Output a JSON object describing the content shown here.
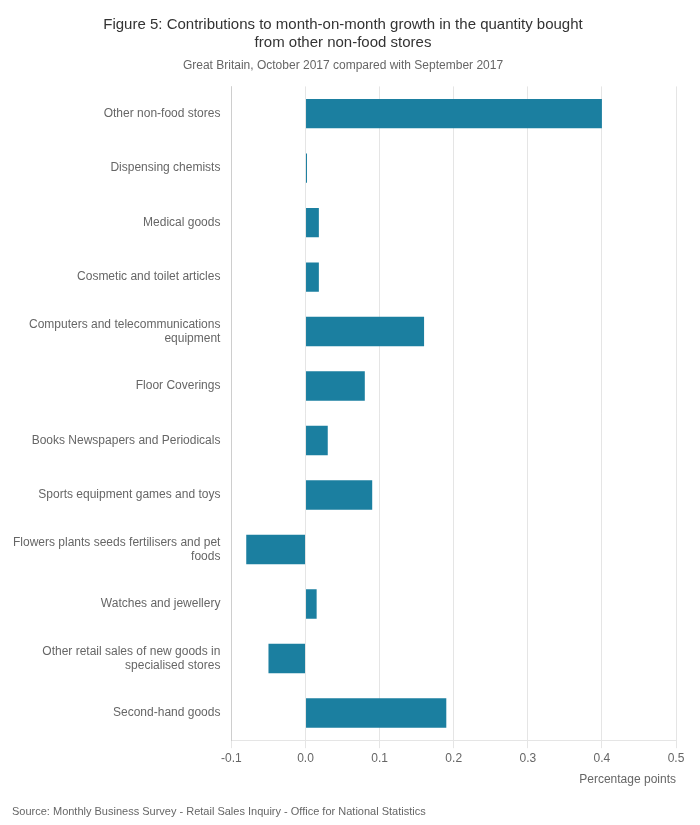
{
  "chart_data": {
    "type": "bar",
    "orientation": "horizontal",
    "title": "Figure 5: Contributions to month-on-month growth in the quantity bought\nfrom other non-food stores",
    "subtitle": "Great Britain, October 2017 compared with September 2017",
    "source": "Source: Monthly Business Survey - Retail Sales Inquiry - Office for National Statistics",
    "xlabel": "Percentage points",
    "categories": [
      "Second-hand goods",
      "Other retail sales of new goods in\nspecialised stores",
      "Watches and jewellery",
      "Flowers plants seeds fertilisers and pet\nfoods",
      "Sports equipment games and toys",
      "Books Newspapers and Periodicals",
      "Floor Coverings",
      "Computers and telecommunications\nequipment",
      "Cosmetic and toilet articles",
      "Medical goods",
      "Dispensing chemists",
      "Other non-food stores"
    ],
    "values": [
      0.19,
      -0.05,
      0.015,
      -0.08,
      0.09,
      0.03,
      0.08,
      0.16,
      0.018,
      0.018,
      0.002,
      0.4
    ],
    "color": "#1b7fa0",
    "xlim": [
      -0.1,
      0.5
    ],
    "xticks": [
      -0.1,
      {
        "value": 0,
        "label": "0.0"
      },
      0.1,
      0.2,
      0.3,
      0.4,
      0.5
    ],
    "grid": true
  }
}
